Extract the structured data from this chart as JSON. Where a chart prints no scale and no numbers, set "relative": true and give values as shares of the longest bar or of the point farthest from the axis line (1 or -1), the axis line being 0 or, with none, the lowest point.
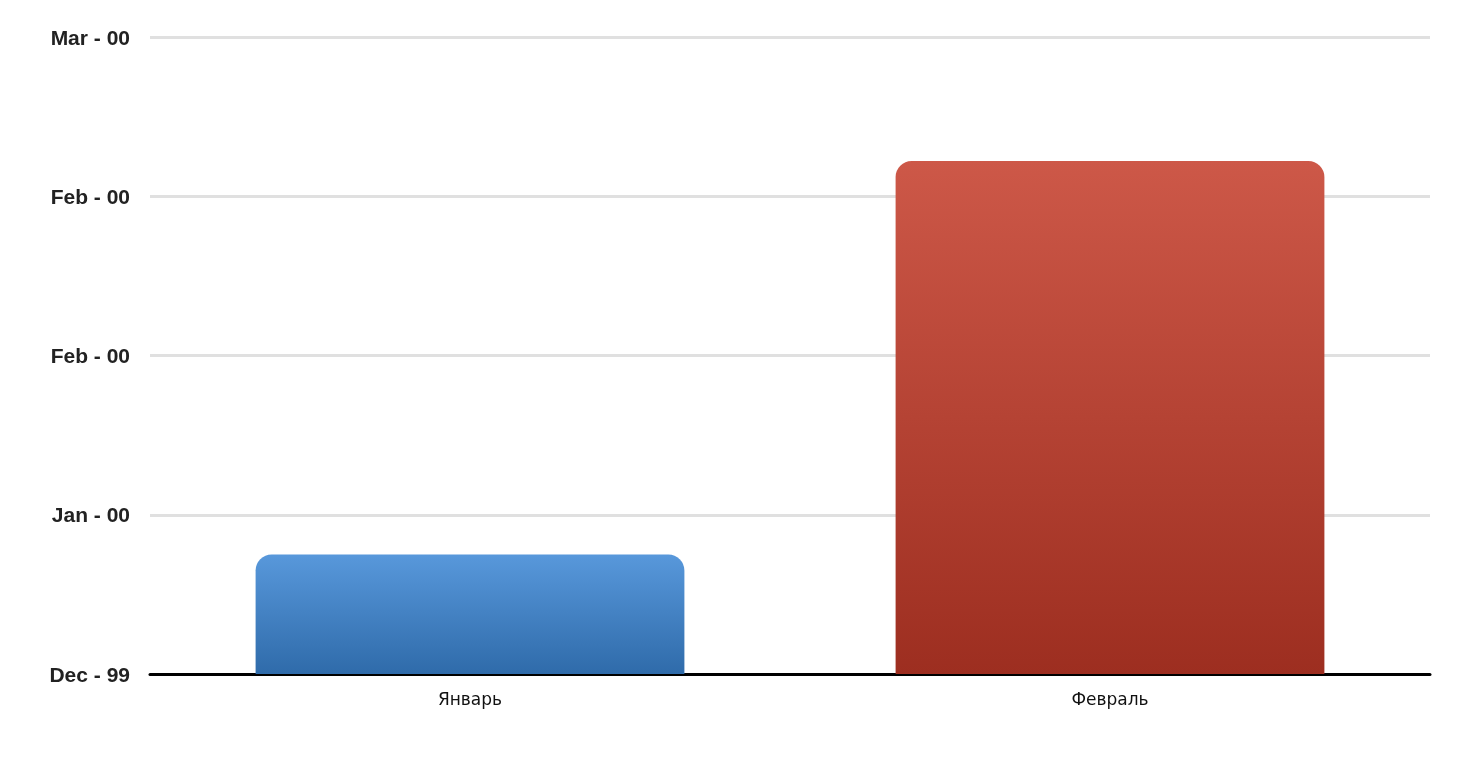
{
  "chart_data": {
    "type": "bar",
    "categories": [
      "Январь",
      "Февраль"
    ],
    "values": [
      0.233,
      1
    ],
    "colors": [
      "#3b86d5",
      "#c43a28"
    ],
    "relative": true,
    "annotations": [
      "Mar - 00",
      "Feb - 00",
      "Feb - 00",
      "Jan - 00",
      "Dec - 99"
    ],
    "grid": "y"
  }
}
